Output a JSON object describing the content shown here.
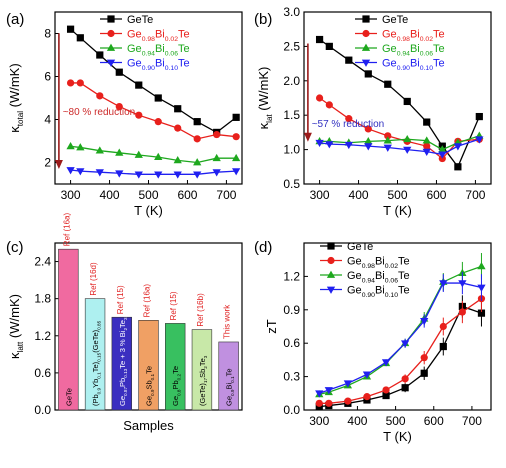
{
  "colors": {
    "black": "#000000",
    "red": "#e8201c",
    "green": "#1ea81e",
    "blue": "#2020f0",
    "arrow": "#9b1b1b",
    "annot": "#cc2a2a",
    "annot_blue": "#3030c0"
  },
  "chart_data": [
    {
      "panel": "(a)",
      "type": "line",
      "xlabel": "T (K)",
      "ylabel": "κtotal (W/mK)",
      "ylabel_main": "κ",
      "ylabel_sub": "total",
      "ylabel_unit": " (W/mK)",
      "xlim": [
        260,
        740
      ],
      "ylim": [
        1,
        9
      ],
      "xticks": [
        300,
        400,
        500,
        600,
        700
      ],
      "yticks": [
        2,
        4,
        6,
        8
      ],
      "annotation": "~80 % reduction",
      "series": [
        {
          "name": "GeTe",
          "parts": [
            [
              "GeTe",
              ""
            ]
          ],
          "color": "#000000",
          "marker": "square",
          "x": [
            300,
            325,
            375,
            425,
            475,
            525,
            575,
            625,
            675,
            725
          ],
          "y": [
            8.2,
            7.8,
            7.0,
            6.2,
            5.6,
            5.0,
            4.5,
            3.9,
            3.4,
            4.1
          ]
        },
        {
          "name": "Ge0.98Bi0.02Te",
          "parts": [
            [
              "Ge",
              ""
            ],
            [
              "0.98",
              "sub"
            ],
            [
              "Bi",
              ""
            ],
            [
              "0.02",
              "sub"
            ],
            [
              "Te",
              ""
            ]
          ],
          "color": "#e8201c",
          "marker": "circle",
          "x": [
            300,
            325,
            375,
            425,
            475,
            525,
            575,
            625,
            675,
            725
          ],
          "y": [
            5.7,
            5.7,
            5.1,
            4.6,
            4.2,
            3.9,
            3.6,
            3.1,
            3.3,
            3.2
          ]
        },
        {
          "name": "Ge0.94Bi0.06Te",
          "parts": [
            [
              "Ge",
              ""
            ],
            [
              "0.94",
              "sub"
            ],
            [
              "Bi",
              ""
            ],
            [
              "0.06",
              "sub"
            ],
            [
              "Te",
              ""
            ]
          ],
          "color": "#1ea81e",
          "marker": "triangle-up",
          "x": [
            300,
            325,
            375,
            425,
            475,
            525,
            575,
            625,
            675,
            725
          ],
          "y": [
            2.75,
            2.7,
            2.55,
            2.45,
            2.35,
            2.25,
            2.1,
            2.0,
            2.2,
            2.2
          ]
        },
        {
          "name": "Ge0.90Bi0.10Te",
          "parts": [
            [
              "Ge",
              ""
            ],
            [
              "0.90",
              "sub"
            ],
            [
              "Bi",
              ""
            ],
            [
              "0.10",
              "sub"
            ],
            [
              "Te",
              ""
            ]
          ],
          "color": "#2020f0",
          "marker": "triangle-down",
          "x": [
            300,
            325,
            375,
            425,
            475,
            525,
            575,
            625,
            675,
            725
          ],
          "y": [
            1.65,
            1.6,
            1.55,
            1.5,
            1.45,
            1.45,
            1.45,
            1.45,
            1.55,
            1.6
          ]
        }
      ]
    },
    {
      "panel": "(b)",
      "type": "line",
      "xlabel": "T (K)",
      "ylabel": "κlat (W/mK)",
      "ylabel_main": "κ",
      "ylabel_sub": "lat",
      "ylabel_unit": " (W/mK)",
      "xlim": [
        260,
        740
      ],
      "ylim": [
        0.5,
        3.0
      ],
      "xticks": [
        300,
        400,
        500,
        600,
        700
      ],
      "yticks": [
        0.5,
        1.0,
        1.5,
        2.0,
        2.5,
        3.0
      ],
      "annotation": "~57 % reduction",
      "series": [
        {
          "name": "GeTe",
          "parts": [
            [
              "GeTe",
              ""
            ]
          ],
          "color": "#000000",
          "marker": "square",
          "x": [
            300,
            325,
            375,
            425,
            475,
            525,
            575,
            615,
            655,
            710
          ],
          "y": [
            2.6,
            2.5,
            2.3,
            2.1,
            1.95,
            1.7,
            1.4,
            1.05,
            0.75,
            1.48
          ]
        },
        {
          "name": "Ge0.98Bi0.02Te",
          "parts": [
            [
              "Ge",
              ""
            ],
            [
              "0.98",
              "sub"
            ],
            [
              "Bi",
              ""
            ],
            [
              "0.02",
              "sub"
            ],
            [
              "Te",
              ""
            ]
          ],
          "color": "#e8201c",
          "marker": "circle",
          "x": [
            300,
            325,
            375,
            425,
            475,
            525,
            575,
            615,
            655,
            710
          ],
          "y": [
            1.75,
            1.65,
            1.45,
            1.3,
            1.2,
            1.12,
            1.05,
            0.87,
            1.12,
            1.15
          ]
        },
        {
          "name": "Ge0.94Bi0.06Te",
          "parts": [
            [
              "Ge",
              ""
            ],
            [
              "0.94",
              "sub"
            ],
            [
              "Bi",
              ""
            ],
            [
              "0.06",
              "sub"
            ],
            [
              "Te",
              ""
            ]
          ],
          "color": "#1ea81e",
          "marker": "triangle-up",
          "x": [
            300,
            325,
            375,
            425,
            475,
            525,
            575,
            615,
            655,
            710
          ],
          "y": [
            1.12,
            1.12,
            1.1,
            1.12,
            1.13,
            1.15,
            1.13,
            1.0,
            1.1,
            1.2
          ]
        },
        {
          "name": "Ge0.90Bi0.10Te",
          "parts": [
            [
              "Ge",
              ""
            ],
            [
              "0.90",
              "sub"
            ],
            [
              "Bi",
              ""
            ],
            [
              "0.10",
              "sub"
            ],
            [
              "Te",
              ""
            ]
          ],
          "color": "#2020f0",
          "marker": "triangle-down",
          "x": [
            300,
            325,
            375,
            425,
            475,
            525,
            575,
            615,
            655,
            710
          ],
          "y": [
            1.1,
            1.08,
            1.07,
            1.05,
            1.03,
            1.0,
            0.97,
            0.93,
            1.05,
            1.15
          ]
        }
      ]
    },
    {
      "panel": "(c)",
      "type": "bar",
      "xlabel": "Samples",
      "ylabel": "κlatt (W/mK)",
      "ylabel_main": "κ",
      "ylabel_sub": "latt",
      "ylabel_unit": " (W/mK)",
      "ylim": [
        0,
        2.7
      ],
      "yticks": [
        0.0,
        0.6,
        1.2,
        1.8,
        2.4
      ],
      "bars": [
        {
          "category": "GeTe",
          "parts": [
            [
              "GeTe",
              ""
            ]
          ],
          "value": 2.6,
          "ref": "Ref (16a)",
          "color": "#f06aa0"
        },
        {
          "category": "(Pb0.9Yb0.1Te)0.15(GeTe)0.85",
          "parts": [
            [
              "(Pb",
              ""
            ],
            [
              "0.9",
              "sub"
            ],
            [
              "Yb",
              ""
            ],
            [
              "0.1",
              "sub"
            ],
            [
              "Te)",
              ""
            ],
            [
              "0.15",
              "sub"
            ],
            [
              "(GeTe)",
              ""
            ],
            [
              "0.85",
              "sub"
            ]
          ],
          "value": 1.8,
          "ref": "Ref (16d)",
          "color": "#aef0f0"
        },
        {
          "category": "Ge0.87Pb0.13Te + 3 % Bi2Te3",
          "parts": [
            [
              "Ge",
              ""
            ],
            [
              "0.87",
              "sub"
            ],
            [
              "Pb",
              ""
            ],
            [
              "0.13",
              "sub"
            ],
            [
              "Te + 3 % Bi",
              ""
            ],
            [
              "2",
              "sub"
            ],
            [
              "Te",
              ""
            ],
            [
              "3",
              "sub"
            ]
          ],
          "value": 1.5,
          "ref": "Ref (15)",
          "color": "#3a2fc0"
        },
        {
          "category": "Ge0.9Sb0.1Te",
          "parts": [
            [
              "Ge",
              ""
            ],
            [
              "0.9",
              "sub"
            ],
            [
              "Sb",
              ""
            ],
            [
              "0.1",
              "sub"
            ],
            [
              "Te",
              ""
            ]
          ],
          "value": 1.45,
          "ref": "Ref (16a)",
          "color": "#f0a064"
        },
        {
          "category": "Ge0.8Pb0.2Te",
          "parts": [
            [
              "Ge",
              ""
            ],
            [
              "0.8",
              "sub"
            ],
            [
              "Pb",
              ""
            ],
            [
              "0.2",
              "sub"
            ],
            [
              "Te",
              ""
            ]
          ],
          "value": 1.4,
          "ref": "Ref (15)",
          "color": "#38c060"
        },
        {
          "category": "(GeTe)17Sb2Te3",
          "parts": [
            [
              "(GeTe)",
              ""
            ],
            [
              "17",
              "sub"
            ],
            [
              "Sb",
              ""
            ],
            [
              "2",
              "sub"
            ],
            [
              "Te",
              ""
            ],
            [
              "3",
              "sub"
            ]
          ],
          "value": 1.3,
          "ref": "Ref (16b)",
          "color": "#c8e8a8"
        },
        {
          "category": "Ge0.9Bi0.1Te",
          "parts": [
            [
              "Ge",
              ""
            ],
            [
              "0.9",
              "sub"
            ],
            [
              "Bi",
              ""
            ],
            [
              "0.1",
              "sub"
            ],
            [
              "Te",
              ""
            ]
          ],
          "value": 1.1,
          "ref": "This work",
          "color": "#c090e0"
        }
      ]
    },
    {
      "panel": "(d)",
      "type": "line",
      "xlabel": "T (K)",
      "ylabel": "zT",
      "xlim": [
        260,
        750
      ],
      "ylim": [
        0.0,
        1.5
      ],
      "xticks": [
        300,
        400,
        500,
        600,
        700
      ],
      "yticks": [
        0.0,
        0.3,
        0.6,
        0.9,
        1.2
      ],
      "series": [
        {
          "name": "GeTe",
          "parts": [
            [
              "GeTe",
              ""
            ]
          ],
          "color": "#000000",
          "marker": "square",
          "x": [
            300,
            325,
            375,
            425,
            475,
            525,
            575,
            625,
            675,
            725
          ],
          "y": [
            0.03,
            0.04,
            0.06,
            0.09,
            0.13,
            0.2,
            0.33,
            0.57,
            0.93,
            0.87
          ]
        },
        {
          "name": "Ge0.98Bi0.02Te",
          "parts": [
            [
              "Ge",
              ""
            ],
            [
              "0.98",
              "sub"
            ],
            [
              "Bi",
              ""
            ],
            [
              "0.02",
              "sub"
            ],
            [
              "Te",
              ""
            ]
          ],
          "color": "#e8201c",
          "marker": "circle",
          "x": [
            300,
            325,
            375,
            425,
            475,
            525,
            575,
            625,
            675,
            725
          ],
          "y": [
            0.06,
            0.06,
            0.08,
            0.12,
            0.18,
            0.28,
            0.47,
            0.75,
            0.88,
            1.0
          ]
        },
        {
          "name": "Ge0.94Bi0.06Te",
          "parts": [
            [
              "Ge",
              ""
            ],
            [
              "0.94",
              "sub"
            ],
            [
              "Bi",
              ""
            ],
            [
              "0.06",
              "sub"
            ],
            [
              "Te",
              ""
            ]
          ],
          "color": "#1ea81e",
          "marker": "triangle-up",
          "x": [
            300,
            325,
            375,
            425,
            475,
            525,
            575,
            625,
            675,
            725
          ],
          "y": [
            0.14,
            0.16,
            0.22,
            0.3,
            0.42,
            0.6,
            0.82,
            1.15,
            1.23,
            1.29
          ]
        },
        {
          "name": "Ge0.90Bi0.10Te",
          "parts": [
            [
              "Ge",
              ""
            ],
            [
              "0.90",
              "sub"
            ],
            [
              "Bi",
              ""
            ],
            [
              "0.10",
              "sub"
            ],
            [
              "Te",
              ""
            ]
          ],
          "color": "#2020f0",
          "marker": "triangle-down",
          "x": [
            300,
            325,
            375,
            425,
            475,
            525,
            575,
            625,
            675,
            725
          ],
          "y": [
            0.15,
            0.18,
            0.24,
            0.32,
            0.43,
            0.6,
            0.8,
            1.14,
            1.14,
            1.1
          ]
        }
      ]
    }
  ]
}
